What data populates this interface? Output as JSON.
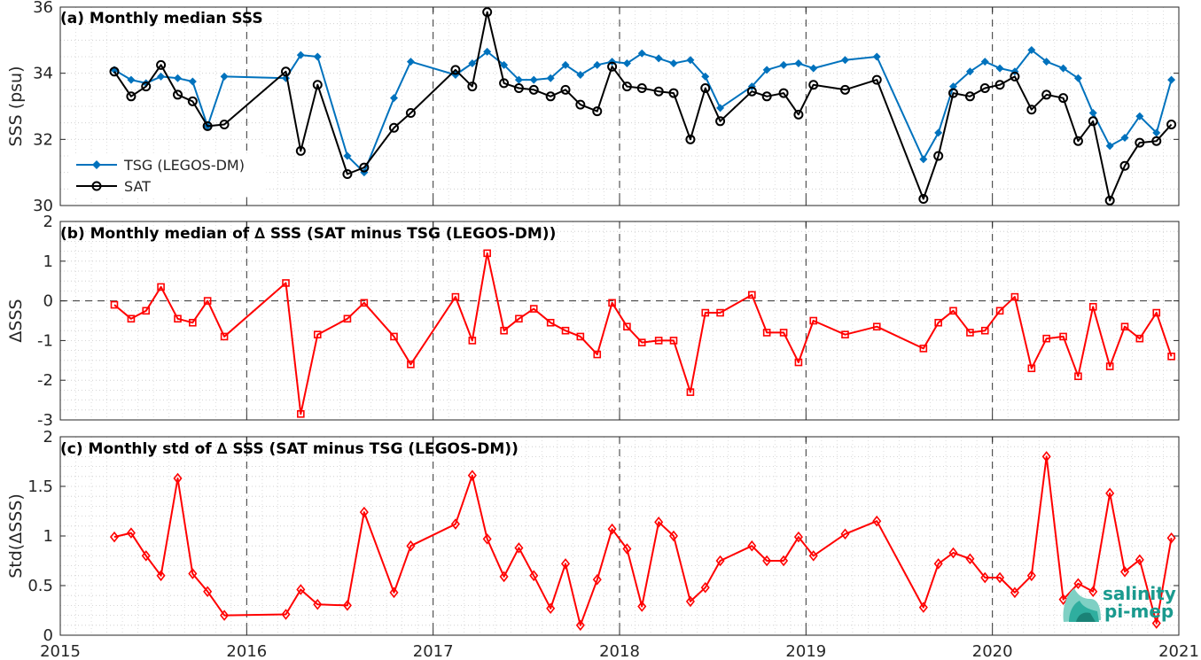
{
  "chart_data": [
    {
      "type": "line",
      "title": "(a) Monthly median SSS",
      "xlabel": "",
      "ylabel": "SSS (psu)",
      "xlim": [
        2015,
        2021
      ],
      "ylim": [
        30,
        36
      ],
      "yticks": [
        30,
        32,
        34,
        36
      ],
      "grid": true,
      "legend_placement": "bottom-left",
      "series": [
        {
          "name": "TSG (LEGOS-DM)",
          "color": "#0072BD",
          "marker": "diamond-filled",
          "x": [
            2015.29,
            2015.38,
            2015.46,
            2015.54,
            2015.63,
            2015.71,
            2015.79,
            2015.88,
            2016.21,
            2016.29,
            2016.38,
            2016.54,
            2016.63,
            2016.79,
            2016.88,
            2017.12,
            2017.21,
            2017.29,
            2017.38,
            2017.46,
            2017.54,
            2017.63,
            2017.71,
            2017.79,
            2017.88,
            2017.96,
            2018.04,
            2018.12,
            2018.21,
            2018.29,
            2018.38,
            2018.46,
            2018.54,
            2018.71,
            2018.79,
            2018.88,
            2018.96,
            2019.04,
            2019.21,
            2019.38,
            2019.63,
            2019.71,
            2019.79,
            2019.88,
            2019.96,
            2020.04,
            2020.12,
            2020.21,
            2020.29,
            2020.38,
            2020.46,
            2020.54,
            2020.63,
            2020.71,
            2020.79,
            2020.88,
            2020.96
          ],
          "y": [
            34.1,
            33.8,
            33.7,
            33.9,
            33.85,
            33.75,
            32.4,
            33.9,
            33.85,
            34.55,
            34.5,
            31.5,
            31.0,
            33.25,
            34.35,
            33.95,
            34.3,
            34.65,
            34.25,
            33.8,
            33.8,
            33.85,
            34.25,
            33.95,
            34.25,
            34.35,
            34.3,
            34.6,
            34.45,
            34.3,
            34.4,
            33.9,
            32.95,
            33.6,
            34.1,
            34.25,
            34.3,
            34.15,
            34.4,
            34.5,
            31.4,
            32.2,
            33.6,
            34.05,
            34.35,
            34.15,
            34.05,
            34.7,
            34.35,
            34.15,
            33.85,
            32.8,
            31.8,
            32.05,
            32.7,
            32.2,
            33.8
          ]
        },
        {
          "name": "SAT",
          "color": "#000000",
          "marker": "circle-open",
          "x": [
            2015.29,
            2015.38,
            2015.46,
            2015.54,
            2015.63,
            2015.71,
            2015.79,
            2015.88,
            2016.21,
            2016.29,
            2016.38,
            2016.54,
            2016.63,
            2016.79,
            2016.88,
            2017.12,
            2017.21,
            2017.29,
            2017.38,
            2017.46,
            2017.54,
            2017.63,
            2017.71,
            2017.79,
            2017.88,
            2017.96,
            2018.04,
            2018.12,
            2018.21,
            2018.29,
            2018.38,
            2018.46,
            2018.54,
            2018.71,
            2018.79,
            2018.88,
            2018.96,
            2019.04,
            2019.21,
            2019.38,
            2019.63,
            2019.71,
            2019.79,
            2019.88,
            2019.96,
            2020.04,
            2020.12,
            2020.21,
            2020.29,
            2020.38,
            2020.46,
            2020.54,
            2020.63,
            2020.71,
            2020.79,
            2020.88,
            2020.96
          ],
          "y": [
            34.05,
            33.3,
            33.6,
            34.25,
            33.35,
            33.15,
            32.4,
            32.45,
            34.05,
            31.65,
            33.65,
            30.95,
            31.15,
            32.35,
            32.8,
            34.1,
            33.6,
            35.85,
            33.7,
            33.55,
            33.5,
            33.3,
            33.5,
            33.05,
            32.85,
            34.2,
            33.6,
            33.55,
            33.45,
            33.4,
            32.0,
            33.55,
            32.55,
            33.45,
            33.3,
            33.4,
            32.75,
            33.65,
            33.5,
            33.8,
            30.2,
            31.5,
            33.4,
            33.3,
            33.55,
            33.65,
            33.9,
            32.9,
            33.35,
            33.25,
            31.95,
            32.55,
            30.15,
            31.2,
            31.9,
            31.95,
            32.45
          ]
        }
      ]
    },
    {
      "type": "line",
      "title": "(b) Monthly median of ∆ SSS (SAT minus TSG (LEGOS-DM))",
      "xlabel": "",
      "ylabel": "ΔSSS",
      "xlim": [
        2015,
        2021
      ],
      "ylim": [
        -3,
        2
      ],
      "yticks": [
        -3,
        -2,
        -1,
        0,
        1,
        2
      ],
      "grid": true,
      "zero_line": "dashed",
      "series": [
        {
          "color": "#FF0000",
          "marker": "square-open",
          "x": [
            2015.29,
            2015.38,
            2015.46,
            2015.54,
            2015.63,
            2015.71,
            2015.79,
            2015.88,
            2016.21,
            2016.29,
            2016.38,
            2016.54,
            2016.63,
            2016.79,
            2016.88,
            2017.12,
            2017.21,
            2017.29,
            2017.38,
            2017.46,
            2017.54,
            2017.63,
            2017.71,
            2017.79,
            2017.88,
            2017.96,
            2018.04,
            2018.12,
            2018.21,
            2018.29,
            2018.38,
            2018.46,
            2018.54,
            2018.71,
            2018.79,
            2018.88,
            2018.96,
            2019.04,
            2019.21,
            2019.38,
            2019.63,
            2019.71,
            2019.79,
            2019.88,
            2019.96,
            2020.04,
            2020.12,
            2020.21,
            2020.29,
            2020.38,
            2020.46,
            2020.54,
            2020.63,
            2020.71,
            2020.79,
            2020.88,
            2020.96
          ],
          "y": [
            -0.1,
            -0.45,
            -0.25,
            0.35,
            -0.45,
            -0.55,
            0.0,
            -0.9,
            0.45,
            -2.85,
            -0.85,
            -0.45,
            -0.05,
            -0.9,
            -1.6,
            0.1,
            -1.0,
            1.2,
            -0.75,
            -0.45,
            -0.2,
            -0.55,
            -0.75,
            -0.9,
            -1.35,
            -0.05,
            -0.65,
            -1.05,
            -1.0,
            -1.0,
            -2.3,
            -0.3,
            -0.3,
            0.15,
            -0.8,
            -0.8,
            -1.55,
            -0.5,
            -0.85,
            -0.65,
            -1.2,
            -0.55,
            -0.25,
            -0.8,
            -0.75,
            -0.25,
            0.1,
            -1.7,
            -0.95,
            -0.9,
            -1.9,
            -0.15,
            -1.65,
            -0.65,
            -0.95,
            -0.3,
            -1.4
          ]
        }
      ]
    },
    {
      "type": "line",
      "title": "(c) Monthly std of ∆ SSS (SAT minus TSG (LEGOS-DM))",
      "xlabel": "",
      "ylabel": "Std(ΔSSS)",
      "xlim": [
        2015,
        2021
      ],
      "ylim": [
        0,
        2
      ],
      "yticks": [
        0,
        0.5,
        1,
        1.5,
        2
      ],
      "grid": true,
      "x_tick_labels": [
        "2015",
        "2016",
        "2017",
        "2018",
        "2019",
        "2020",
        "2021"
      ],
      "series": [
        {
          "color": "#FF0000",
          "marker": "diamond-open",
          "x": [
            2015.29,
            2015.38,
            2015.46,
            2015.54,
            2015.63,
            2015.71,
            2015.79,
            2015.88,
            2016.21,
            2016.29,
            2016.38,
            2016.54,
            2016.63,
            2016.79,
            2016.88,
            2017.12,
            2017.21,
            2017.29,
            2017.38,
            2017.46,
            2017.54,
            2017.63,
            2017.71,
            2017.79,
            2017.88,
            2017.96,
            2018.04,
            2018.12,
            2018.21,
            2018.29,
            2018.38,
            2018.46,
            2018.54,
            2018.71,
            2018.79,
            2018.88,
            2018.96,
            2019.04,
            2019.21,
            2019.38,
            2019.63,
            2019.71,
            2019.79,
            2019.88,
            2019.96,
            2020.04,
            2020.12,
            2020.21,
            2020.29,
            2020.38,
            2020.46,
            2020.54,
            2020.63,
            2020.71,
            2020.79,
            2020.88,
            2020.96
          ],
          "y": [
            0.99,
            1.03,
            0.8,
            0.6,
            1.58,
            0.62,
            0.44,
            0.2,
            0.21,
            0.46,
            0.31,
            0.3,
            1.24,
            0.43,
            0.9,
            1.12,
            1.61,
            0.97,
            0.59,
            0.88,
            0.6,
            0.27,
            0.72,
            0.1,
            0.56,
            1.07,
            0.87,
            0.29,
            1.14,
            1.0,
            0.34,
            0.48,
            0.75,
            0.9,
            0.75,
            0.75,
            0.99,
            0.8,
            1.02,
            1.15,
            0.28,
            0.72,
            0.83,
            0.77,
            0.58,
            0.58,
            0.43,
            0.6,
            1.8,
            0.36,
            0.52,
            0.44,
            1.43,
            0.64,
            0.76,
            0.12,
            0.98
          ]
        }
      ]
    }
  ],
  "logo": {
    "line1": "salinity",
    "line2": "pi-mep"
  }
}
